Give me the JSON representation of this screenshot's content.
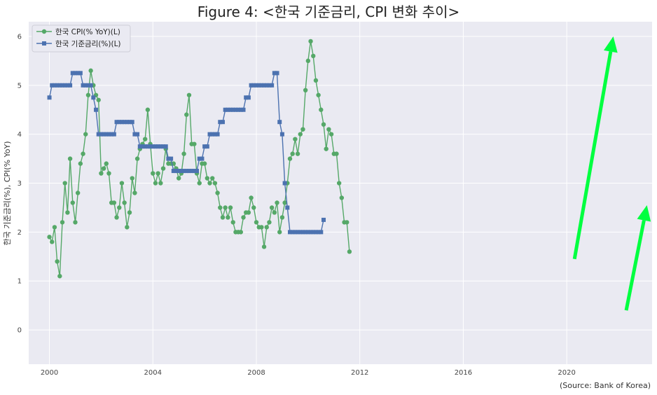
{
  "chart_data": {
    "type": "line",
    "title": "Figure 4: <한국 기준금리, CPI 변화 추이>",
    "ylabel": "한국 기준금리(%), CPI(% YoY)",
    "source": "(Source: Bank of Korea)",
    "xlim": [
      1999.2,
      2023.3
    ],
    "ylim": [
      -0.7,
      6.3
    ],
    "x_ticks": [
      2000,
      2004,
      2008,
      2012,
      2016,
      2020
    ],
    "x_tick_labels": [
      "2000",
      "2004",
      "2008",
      "2012",
      "2016",
      "2020"
    ],
    "y_ticks": [
      0,
      1,
      2,
      3,
      4,
      5,
      6
    ],
    "y_tick_labels": [
      "0",
      "1",
      "2",
      "3",
      "4",
      "5",
      "6"
    ],
    "grid": true,
    "legend_position": "top-left",
    "series": [
      {
        "name": "한국 CPI(% YoY)(L)",
        "color": "#55a868",
        "marker": "circle",
        "points": [
          [
            2000.0,
            1.9
          ],
          [
            2000.1,
            1.8
          ],
          [
            2000.2,
            2.1
          ],
          [
            2000.3,
            1.4
          ],
          [
            2000.4,
            1.1
          ],
          [
            2000.5,
            2.2
          ],
          [
            2000.6,
            3.0
          ],
          [
            2000.7,
            2.4
          ],
          [
            2000.8,
            3.5
          ],
          [
            2000.9,
            2.6
          ],
          [
            2001.0,
            2.2
          ],
          [
            2001.1,
            2.8
          ],
          [
            2001.2,
            3.4
          ],
          [
            2001.3,
            3.6
          ],
          [
            2001.4,
            4.0
          ],
          [
            2001.5,
            4.8
          ],
          [
            2001.6,
            5.3
          ],
          [
            2001.7,
            5.0
          ],
          [
            2001.8,
            4.8
          ],
          [
            2001.9,
            4.7
          ],
          [
            2002.0,
            3.2
          ],
          [
            2002.1,
            3.3
          ],
          [
            2002.2,
            3.4
          ],
          [
            2002.3,
            3.2
          ],
          [
            2002.4,
            2.6
          ],
          [
            2002.5,
            2.6
          ],
          [
            2002.6,
            2.3
          ],
          [
            2002.7,
            2.5
          ],
          [
            2002.8,
            3.0
          ],
          [
            2002.9,
            2.6
          ],
          [
            2003.0,
            2.1
          ],
          [
            2003.1,
            2.4
          ],
          [
            2003.2,
            3.1
          ],
          [
            2003.3,
            2.8
          ],
          [
            2003.4,
            3.5
          ],
          [
            2003.5,
            3.7
          ],
          [
            2003.6,
            3.8
          ],
          [
            2003.7,
            3.9
          ],
          [
            2003.8,
            4.5
          ],
          [
            2003.9,
            3.8
          ],
          [
            2004.0,
            3.2
          ],
          [
            2004.1,
            3.0
          ],
          [
            2004.2,
            3.2
          ],
          [
            2004.3,
            3.0
          ],
          [
            2004.4,
            3.3
          ],
          [
            2004.5,
            3.7
          ],
          [
            2004.6,
            3.4
          ],
          [
            2004.7,
            3.4
          ],
          [
            2004.8,
            3.4
          ],
          [
            2004.9,
            3.3
          ],
          [
            2005.0,
            3.1
          ],
          [
            2005.1,
            3.2
          ],
          [
            2005.2,
            3.6
          ],
          [
            2005.3,
            4.4
          ],
          [
            2005.4,
            4.8
          ],
          [
            2005.5,
            3.8
          ],
          [
            2005.6,
            3.8
          ],
          [
            2005.7,
            3.2
          ],
          [
            2005.8,
            3.0
          ],
          [
            2005.9,
            3.4
          ],
          [
            2006.0,
            3.4
          ],
          [
            2006.1,
            3.1
          ],
          [
            2006.2,
            3.0
          ],
          [
            2006.3,
            3.1
          ],
          [
            2006.4,
            3.0
          ],
          [
            2006.5,
            2.8
          ],
          [
            2006.6,
            2.5
          ],
          [
            2006.7,
            2.3
          ],
          [
            2006.8,
            2.5
          ],
          [
            2006.9,
            2.3
          ],
          [
            2007.0,
            2.5
          ],
          [
            2007.1,
            2.2
          ],
          [
            2007.2,
            2.0
          ],
          [
            2007.3,
            2.0
          ],
          [
            2007.4,
            2.0
          ],
          [
            2007.5,
            2.3
          ],
          [
            2007.6,
            2.4
          ],
          [
            2007.7,
            2.4
          ],
          [
            2007.8,
            2.7
          ],
          [
            2007.9,
            2.5
          ],
          [
            2008.0,
            2.2
          ],
          [
            2008.1,
            2.1
          ],
          [
            2008.2,
            2.1
          ],
          [
            2008.3,
            1.7
          ],
          [
            2008.4,
            2.1
          ],
          [
            2008.5,
            2.2
          ],
          [
            2008.6,
            2.5
          ],
          [
            2008.7,
            2.4
          ],
          [
            2008.8,
            2.6
          ],
          [
            2008.9,
            2.0
          ],
          [
            2009.0,
            2.3
          ],
          [
            2009.1,
            2.6
          ],
          [
            2009.2,
            3.0
          ],
          [
            2009.3,
            3.5
          ],
          [
            2009.4,
            3.6
          ],
          [
            2009.5,
            3.9
          ],
          [
            2009.6,
            3.6
          ],
          [
            2009.7,
            4.0
          ],
          [
            2009.8,
            4.1
          ],
          [
            2009.9,
            4.9
          ],
          [
            2010.0,
            5.5
          ],
          [
            2010.1,
            5.9
          ],
          [
            2010.2,
            5.6
          ],
          [
            2010.3,
            5.1
          ],
          [
            2010.4,
            4.8
          ],
          [
            2010.5,
            4.5
          ],
          [
            2010.6,
            4.2
          ],
          [
            2010.7,
            3.7
          ],
          [
            2010.8,
            4.1
          ],
          [
            2010.9,
            4.0
          ],
          [
            2011.0,
            3.6
          ],
          [
            2011.1,
            3.6
          ],
          [
            2011.2,
            3.0
          ],
          [
            2011.3,
            2.7
          ],
          [
            2011.4,
            2.2
          ],
          [
            2011.5,
            2.2
          ],
          [
            2011.6,
            1.6
          ]
        ]
      },
      {
        "name": "한국 기준금리(%)(L)",
        "color": "#4c72b0",
        "marker": "square",
        "points": [
          [
            2000.0,
            4.75
          ],
          [
            2000.1,
            5.0
          ],
          [
            2000.2,
            5.0
          ],
          [
            2000.3,
            5.0
          ],
          [
            2000.4,
            5.0
          ],
          [
            2000.5,
            5.0
          ],
          [
            2000.6,
            5.0
          ],
          [
            2000.7,
            5.0
          ],
          [
            2000.8,
            5.0
          ],
          [
            2000.9,
            5.25
          ],
          [
            2001.0,
            5.25
          ],
          [
            2001.1,
            5.25
          ],
          [
            2001.2,
            5.25
          ],
          [
            2001.3,
            5.0
          ],
          [
            2001.4,
            5.0
          ],
          [
            2001.5,
            5.0
          ],
          [
            2001.6,
            5.0
          ],
          [
            2001.7,
            4.75
          ],
          [
            2001.8,
            4.5
          ],
          [
            2001.9,
            4.0
          ],
          [
            2002.0,
            4.0
          ],
          [
            2002.1,
            4.0
          ],
          [
            2002.2,
            4.0
          ],
          [
            2002.3,
            4.0
          ],
          [
            2002.4,
            4.0
          ],
          [
            2002.5,
            4.0
          ],
          [
            2002.6,
            4.25
          ],
          [
            2002.7,
            4.25
          ],
          [
            2002.8,
            4.25
          ],
          [
            2002.9,
            4.25
          ],
          [
            2003.0,
            4.25
          ],
          [
            2003.1,
            4.25
          ],
          [
            2003.2,
            4.25
          ],
          [
            2003.3,
            4.0
          ],
          [
            2003.4,
            4.0
          ],
          [
            2003.5,
            3.75
          ],
          [
            2003.6,
            3.75
          ],
          [
            2003.7,
            3.75
          ],
          [
            2003.8,
            3.75
          ],
          [
            2003.9,
            3.75
          ],
          [
            2004.0,
            3.75
          ],
          [
            2004.1,
            3.75
          ],
          [
            2004.2,
            3.75
          ],
          [
            2004.3,
            3.75
          ],
          [
            2004.4,
            3.75
          ],
          [
            2004.5,
            3.75
          ],
          [
            2004.6,
            3.5
          ],
          [
            2004.7,
            3.5
          ],
          [
            2004.8,
            3.25
          ],
          [
            2004.9,
            3.25
          ],
          [
            2005.0,
            3.25
          ],
          [
            2005.1,
            3.25
          ],
          [
            2005.2,
            3.25
          ],
          [
            2005.3,
            3.25
          ],
          [
            2005.4,
            3.25
          ],
          [
            2005.5,
            3.25
          ],
          [
            2005.6,
            3.25
          ],
          [
            2005.7,
            3.25
          ],
          [
            2005.8,
            3.5
          ],
          [
            2005.9,
            3.5
          ],
          [
            2006.0,
            3.75
          ],
          [
            2006.1,
            3.75
          ],
          [
            2006.2,
            4.0
          ],
          [
            2006.3,
            4.0
          ],
          [
            2006.4,
            4.0
          ],
          [
            2006.5,
            4.0
          ],
          [
            2006.6,
            4.25
          ],
          [
            2006.7,
            4.25
          ],
          [
            2006.8,
            4.5
          ],
          [
            2006.9,
            4.5
          ],
          [
            2007.0,
            4.5
          ],
          [
            2007.1,
            4.5
          ],
          [
            2007.2,
            4.5
          ],
          [
            2007.3,
            4.5
          ],
          [
            2007.4,
            4.5
          ],
          [
            2007.5,
            4.5
          ],
          [
            2007.6,
            4.75
          ],
          [
            2007.7,
            4.75
          ],
          [
            2007.8,
            5.0
          ],
          [
            2007.9,
            5.0
          ],
          [
            2008.0,
            5.0
          ],
          [
            2008.1,
            5.0
          ],
          [
            2008.2,
            5.0
          ],
          [
            2008.3,
            5.0
          ],
          [
            2008.4,
            5.0
          ],
          [
            2008.5,
            5.0
          ],
          [
            2008.6,
            5.0
          ],
          [
            2008.7,
            5.25
          ],
          [
            2008.8,
            5.25
          ],
          [
            2008.9,
            4.25
          ],
          [
            2009.0,
            4.0
          ],
          [
            2009.1,
            3.0
          ],
          [
            2009.2,
            2.5
          ],
          [
            2009.3,
            2.0
          ],
          [
            2009.4,
            2.0
          ],
          [
            2009.5,
            2.0
          ],
          [
            2009.6,
            2.0
          ],
          [
            2009.7,
            2.0
          ],
          [
            2009.8,
            2.0
          ],
          [
            2009.9,
            2.0
          ],
          [
            2010.0,
            2.0
          ],
          [
            2010.1,
            2.0
          ],
          [
            2010.2,
            2.0
          ],
          [
            2010.3,
            2.0
          ],
          [
            2010.4,
            2.0
          ],
          [
            2010.5,
            2.0
          ],
          [
            2010.6,
            2.25
          ]
        ]
      }
    ],
    "annotations": [
      {
        "type": "arrow",
        "color": "#00ff40",
        "from": [
          2020.3,
          1.45
        ],
        "to": [
          2021.8,
          6.0
        ]
      },
      {
        "type": "arrow",
        "color": "#00ff40",
        "from": [
          2022.3,
          0.4
        ],
        "to": [
          2023.1,
          2.55
        ]
      }
    ]
  }
}
